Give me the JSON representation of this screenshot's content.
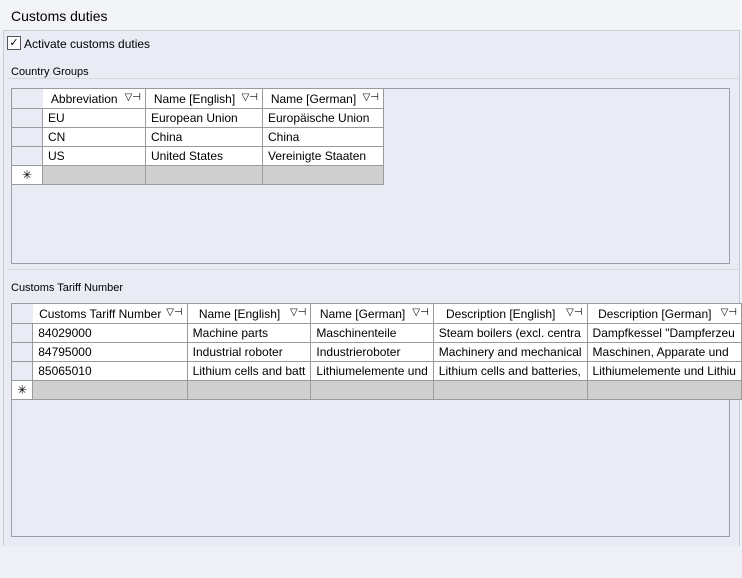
{
  "title": "Customs duties",
  "activate": {
    "label": "Activate customs duties",
    "checked": true
  },
  "country_groups": {
    "label": "Country Groups",
    "columns": [
      "Abbreviation",
      "Name [English]",
      "Name [German]"
    ],
    "rows": [
      [
        "EU",
        "European Union",
        "Europäische Union"
      ],
      [
        "CN",
        "China",
        "China"
      ],
      [
        "US",
        "United States",
        "Vereinigte Staaten"
      ]
    ],
    "new_row_marker": "✳"
  },
  "tariff": {
    "label": "Customs Tariff Number",
    "columns": [
      "Customs Tariff Number",
      "Name [English]",
      "Name [German]",
      "Description [English]",
      "Description [German]"
    ],
    "rows": [
      [
        "84029000",
        "Machine parts",
        "Maschinenteile",
        "Steam boilers (excl. centra",
        "Dampfkessel \"Dampferzeu"
      ],
      [
        "84795000",
        "Industrial roboter",
        "Industrieroboter",
        "Machinery and mechanical",
        "Maschinen, Apparate und"
      ],
      [
        "85065010",
        "Lithium cells and batt",
        "Lithiumelemente und",
        "Lithium cells and batteries,",
        "Lithiumelemente und Lithiu"
      ]
    ],
    "new_row_marker": "✳"
  },
  "icons": {
    "filter": "filter-icon",
    "pin": "pin-icon"
  },
  "filter_glyph": "⊽⊣"
}
